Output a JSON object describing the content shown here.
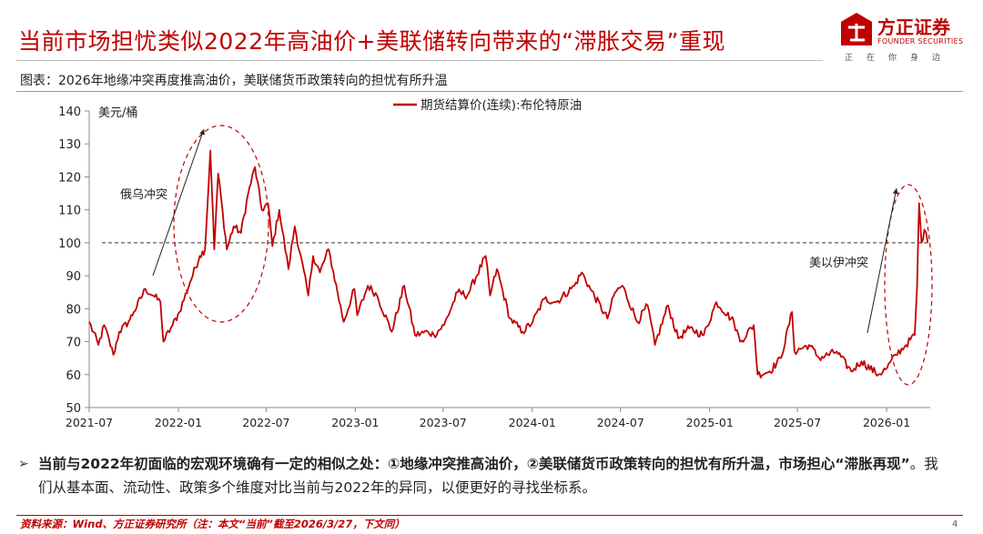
{
  "header": {
    "title": "当前市场担忧类似2022年高油价+美联储转向带来的“滞胀交易”重现",
    "subtitle": "图表：2026年地缘冲突再度推高油价，美联储货币政策转向的担忧有所升温"
  },
  "logo": {
    "name_cn": "方正证券",
    "name_en": "FOUNDER SECURITIES",
    "motto": "正在你身边",
    "color": "#c00000"
  },
  "chart_data": {
    "type": "line",
    "ylabel": "美元/桶",
    "ylim": [
      50,
      140
    ],
    "yticks": [
      50,
      60,
      70,
      80,
      90,
      100,
      110,
      120,
      130,
      140
    ],
    "xticks": [
      "2021-07",
      "2022-01",
      "2022-07",
      "2023-01",
      "2023-07",
      "2024-01",
      "2024-07",
      "2025-01",
      "2025-07",
      "2026-01"
    ],
    "xrange": [
      "2021-07",
      "2026-03"
    ],
    "legend_position": "top-center",
    "reference_line": 100,
    "series": [
      {
        "name": "期货结算价(连续):布伦特原油",
        "color": "#c00000",
        "points": [
          [
            "2021-07-01",
            76
          ],
          [
            "2021-07-20",
            69
          ],
          [
            "2021-08-01",
            75
          ],
          [
            "2021-08-20",
            66
          ],
          [
            "2021-09-01",
            73
          ],
          [
            "2021-09-20",
            76
          ],
          [
            "2021-10-01",
            79
          ],
          [
            "2021-10-25",
            86
          ],
          [
            "2021-11-10",
            84
          ],
          [
            "2021-11-25",
            82
          ],
          [
            "2021-12-01",
            70
          ],
          [
            "2021-12-20",
            75
          ],
          [
            "2022-01-03",
            79
          ],
          [
            "2022-01-25",
            88
          ],
          [
            "2022-02-14",
            96
          ],
          [
            "2022-02-25",
            98
          ],
          [
            "2022-03-08",
            128
          ],
          [
            "2022-03-16",
            98
          ],
          [
            "2022-03-24",
            121
          ],
          [
            "2022-04-11",
            98
          ],
          [
            "2022-04-25",
            105
          ],
          [
            "2022-05-10",
            103
          ],
          [
            "2022-05-25",
            115
          ],
          [
            "2022-06-08",
            123
          ],
          [
            "2022-06-22",
            110
          ],
          [
            "2022-07-05",
            112
          ],
          [
            "2022-07-14",
            99
          ],
          [
            "2022-07-28",
            110
          ],
          [
            "2022-08-16",
            92
          ],
          [
            "2022-08-29",
            105
          ],
          [
            "2022-09-26",
            84
          ],
          [
            "2022-10-06",
            96
          ],
          [
            "2022-10-20",
            91
          ],
          [
            "2022-11-07",
            98
          ],
          [
            "2022-12-08",
            76
          ],
          [
            "2022-12-30",
            86
          ],
          [
            "2023-01-05",
            78
          ],
          [
            "2023-01-27",
            87
          ],
          [
            "2023-02-15",
            84
          ],
          [
            "2023-03-17",
            73
          ],
          [
            "2023-04-12",
            87
          ],
          [
            "2023-05-04",
            72
          ],
          [
            "2023-05-31",
            73
          ],
          [
            "2023-06-12",
            72
          ],
          [
            "2023-07-03",
            75
          ],
          [
            "2023-07-31",
            85
          ],
          [
            "2023-08-20",
            84
          ],
          [
            "2023-09-27",
            96
          ],
          [
            "2023-10-06",
            84
          ],
          [
            "2023-10-20",
            92
          ],
          [
            "2023-11-16",
            77
          ],
          [
            "2023-12-12",
            73
          ],
          [
            "2024-01-02",
            76
          ],
          [
            "2024-01-26",
            83
          ],
          [
            "2024-02-20",
            82
          ],
          [
            "2024-03-28",
            87
          ],
          [
            "2024-04-12",
            91
          ],
          [
            "2024-04-30",
            86
          ],
          [
            "2024-06-04",
            77
          ],
          [
            "2024-06-20",
            85
          ],
          [
            "2024-07-05",
            87
          ],
          [
            "2024-08-05",
            76
          ],
          [
            "2024-08-26",
            81
          ],
          [
            "2024-09-10",
            69
          ],
          [
            "2024-10-07",
            81
          ],
          [
            "2024-10-28",
            71
          ],
          [
            "2024-11-20",
            74
          ],
          [
            "2024-12-20",
            72
          ],
          [
            "2025-01-15",
            82
          ],
          [
            "2025-02-20",
            76
          ],
          [
            "2025-03-05",
            70
          ],
          [
            "2025-04-02",
            75
          ],
          [
            "2025-04-10",
            60
          ],
          [
            "2025-05-05",
            61
          ],
          [
            "2025-05-28",
            65
          ],
          [
            "2025-06-20",
            79
          ],
          [
            "2025-06-25",
            67
          ],
          [
            "2025-07-25",
            69
          ],
          [
            "2025-08-15",
            65
          ],
          [
            "2025-09-20",
            67
          ],
          [
            "2025-10-20",
            61
          ],
          [
            "2025-11-10",
            64
          ],
          [
            "2025-12-15",
            60
          ],
          [
            "2026-01-02",
            62
          ],
          [
            "2026-01-20",
            66
          ],
          [
            "2026-02-10",
            69
          ],
          [
            "2026-02-28",
            72
          ],
          [
            "2026-03-05",
            87
          ],
          [
            "2026-03-09",
            112
          ],
          [
            "2026-03-14",
            100
          ],
          [
            "2026-03-20",
            104
          ],
          [
            "2026-03-27",
            100
          ]
        ]
      }
    ],
    "annotations": [
      {
        "text": "俄乌冲突"
      },
      {
        "text": "美以伊冲突"
      }
    ]
  },
  "bullet": {
    "part1": "当前与2022年初面临的宏观环境确有一定的相似之处：①地缘冲突推高油价，②美联储货币政策转向的担忧有所升温，市场担心“滞胀再现”",
    "part2": "。我们从基本面、流动性、政策多个维度对比当前与2022年的异同，以便更好的寻找坐标系。"
  },
  "footer": {
    "source": "资料来源：Wind、方正证券研究所（注：本文“当前”截至2026/3/27，下文同）",
    "page": "4"
  }
}
